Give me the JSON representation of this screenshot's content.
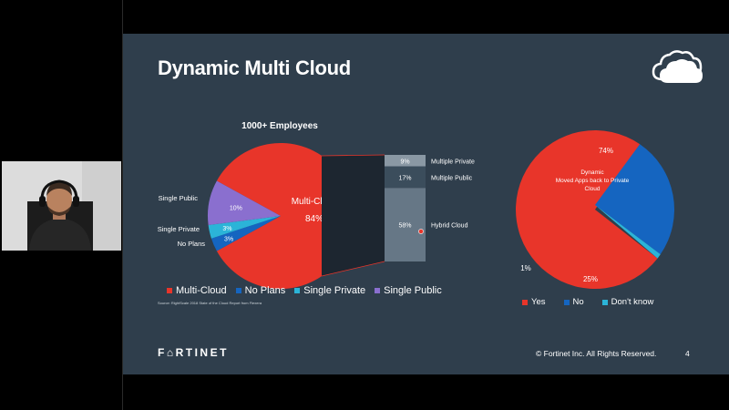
{
  "slide": {
    "title": "Dynamic Multi Cloud",
    "source": "Source: RightScale 2018 State of the Cloud Report from Flexera",
    "brand": "F⌂RTINET",
    "copyright": "© Fortinet Inc. All Rights Reserved.",
    "page_number": "4",
    "icon": "cloud-icon"
  },
  "colors": {
    "background": "#2f3e4c",
    "red": "#e8352a",
    "blue": "#1565c0",
    "light_blue": "#2bb4d8",
    "purple": "#8a6fcf",
    "bar_dark": "#3b4d5c",
    "bar_mid": "#667786",
    "bar_light": "#8a98a4"
  },
  "chart_data": [
    {
      "type": "pie",
      "title": "1000+ Employees",
      "categories": [
        "Multi-Cloud",
        "No Plans",
        "Single Private",
        "Single Public"
      ],
      "values": [
        84,
        3,
        3,
        10
      ],
      "slice_labels": [
        "84%",
        "3%",
        "3%",
        "10%"
      ],
      "category_labels": [
        "Multi-Cloud",
        "No Plans",
        "Single Private",
        "Single Public"
      ],
      "legend": [
        "Multi-Cloud",
        "No Plans",
        "Single Private",
        "Single Public"
      ],
      "legend_position": "bottom"
    },
    {
      "type": "bar",
      "stacked": true,
      "categories": [
        "Hybrid Cloud",
        "Multiple Public",
        "Multiple Private"
      ],
      "values": [
        58,
        17,
        9
      ],
      "value_labels": [
        "58%",
        "17%",
        "9%"
      ]
    },
    {
      "type": "pie",
      "categories": [
        "Yes",
        "No",
        "Don't know"
      ],
      "values": [
        74,
        25,
        1
      ],
      "slice_labels": [
        "74%",
        "25%",
        "1%"
      ],
      "annotation": "Dynamic\nMoved Apps back to Private Cloud",
      "annotation_lines": [
        "Dynamic",
        "Moved Apps back to Private",
        "Cloud"
      ],
      "legend": [
        "Yes",
        "No",
        "Don't know"
      ],
      "legend_position": "bottom"
    }
  ]
}
